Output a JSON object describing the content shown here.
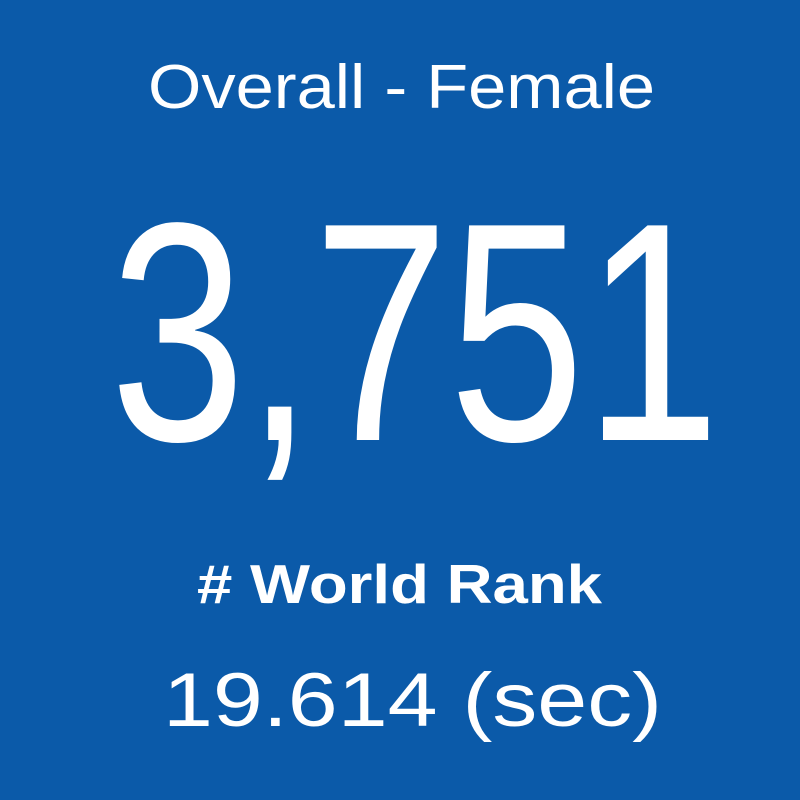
{
  "card": {
    "title": "Overall - Female",
    "value": "3,751",
    "label": "# World Rank",
    "time": "19.614 (sec)"
  }
}
